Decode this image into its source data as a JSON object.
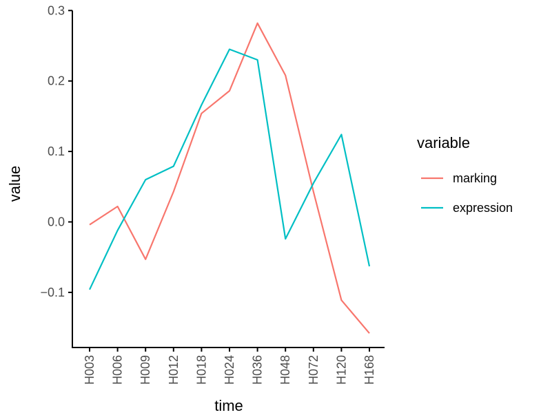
{
  "chart_data": {
    "type": "line",
    "xlabel": "time",
    "ylabel": "value",
    "categories": [
      "H003",
      "H006",
      "H009",
      "H012",
      "H018",
      "H024",
      "H036",
      "H048",
      "H072",
      "H120",
      "H168"
    ],
    "ylim": [
      -0.175,
      0.3
    ],
    "yticks": [
      -0.1,
      0.0,
      0.1,
      0.2,
      0.3
    ],
    "ytick_labels": [
      "−0.1",
      "0.0",
      "0.1",
      "0.2",
      "0.3"
    ],
    "grid": false,
    "legend": {
      "title": "variable",
      "position": "right"
    },
    "series": [
      {
        "name": "marking",
        "color": "#F8766D",
        "values": [
          -0.004,
          0.022,
          -0.053,
          0.043,
          0.154,
          0.186,
          0.282,
          0.208,
          0.043,
          -0.111,
          -0.158
        ]
      },
      {
        "name": "expression",
        "color": "#00BFC4",
        "values": [
          -0.096,
          -0.012,
          0.06,
          0.079,
          0.166,
          0.245,
          0.23,
          -0.024,
          0.055,
          0.124,
          -0.063
        ]
      }
    ]
  }
}
